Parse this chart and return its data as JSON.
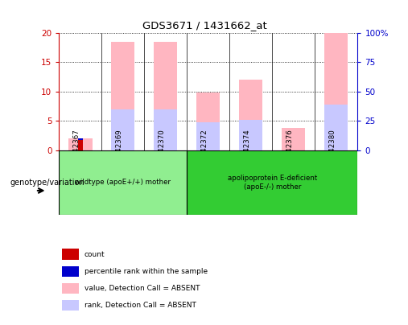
{
  "title": "GDS3671 / 1431662_at",
  "samples": [
    "GSM142367",
    "GSM142369",
    "GSM142370",
    "GSM142372",
    "GSM142374",
    "GSM142376",
    "GSM142380"
  ],
  "groups": [
    {
      "label": "wildtype (apoE+/+) mother",
      "color": "#90EE90",
      "samples_idx": [
        0,
        1,
        2
      ]
    },
    {
      "label": "apolipoprotein E-deficient\n(apoE-/-) mother",
      "color": "#33CC33",
      "samples_idx": [
        3,
        4,
        5,
        6
      ]
    }
  ],
  "ylim_left": [
    0,
    20
  ],
  "ylim_right": [
    0,
    100
  ],
  "yticks_left": [
    0,
    5,
    10,
    15,
    20
  ],
  "yticks_right": [
    0,
    25,
    50,
    75,
    100
  ],
  "ytick_labels_right": [
    "0",
    "25",
    "50",
    "75",
    "100%"
  ],
  "bar_value_absent": [
    2.0,
    18.5,
    18.5,
    9.8,
    12.0,
    3.8,
    20.0
  ],
  "bar_rank_absent": [
    0.0,
    7.0,
    7.0,
    4.7,
    5.2,
    0.0,
    7.8
  ],
  "bar_count": [
    1.8,
    0.0,
    0.0,
    0.0,
    0.0,
    0.0,
    0.0
  ],
  "bar_percentile": [
    2.0,
    0.0,
    0.0,
    0.0,
    0.0,
    0.0,
    0.0
  ],
  "color_value_absent": "#FFB6C1",
  "color_rank_absent": "#C8C8FF",
  "color_count": "#CC0000",
  "color_percentile": "#0000CC",
  "bar_width": 0.55,
  "sample_label_color": "#C0C0C0",
  "left_ylabel_color": "#CC0000",
  "right_ylabel_color": "#0000CC",
  "legend_items": [
    {
      "color": "#CC0000",
      "label": "count"
    },
    {
      "color": "#0000CC",
      "label": "percentile rank within the sample"
    },
    {
      "color": "#FFB6C1",
      "label": "value, Detection Call = ABSENT"
    },
    {
      "color": "#C8C8FF",
      "label": "rank, Detection Call = ABSENT"
    }
  ]
}
